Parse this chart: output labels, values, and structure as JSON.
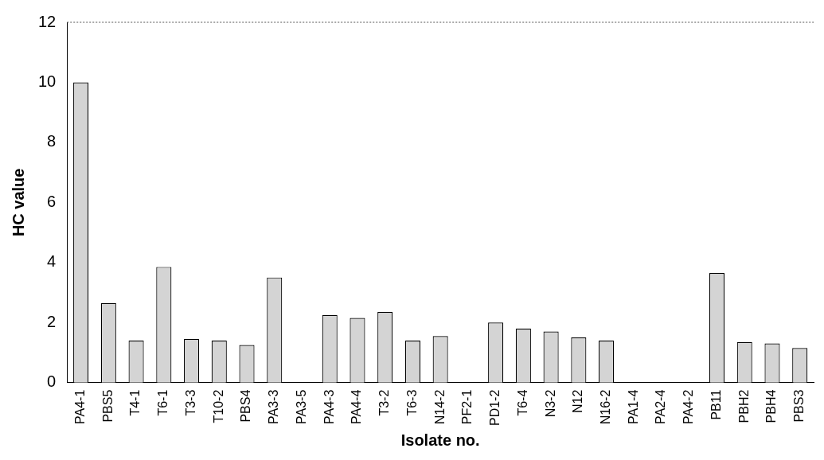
{
  "chart_data": {
    "type": "bar",
    "xlabel": "Isolate no.",
    "ylabel": "HC value",
    "categories": [
      "PA4-1",
      "PBS5",
      "T4-1",
      "T6-1",
      "T3-3",
      "T10-2",
      "PBS4",
      "PA3-3",
      "PA3-5",
      "PA4-3",
      "PA4-4",
      "T3-2",
      "T6-3",
      "N14-2",
      "PF2-1",
      "PD1-2",
      "T6-4",
      "N3-2",
      "N12",
      "N16-2",
      "PA1-4",
      "PA2-4",
      "PA4-2",
      "PB11",
      "PBH2",
      "PBH4",
      "PBS3"
    ],
    "values": [
      10,
      2.65,
      1.4,
      3.85,
      1.45,
      1.4,
      1.25,
      3.5,
      0,
      2.25,
      2.15,
      2.35,
      1.4,
      1.55,
      0,
      2.0,
      1.8,
      1.7,
      1.5,
      1.4,
      0,
      0,
      0,
      3.65,
      1.35,
      1.3,
      1.15
    ],
    "color": "#d4d4d4",
    "ylim": [
      0,
      12
    ],
    "yticks": [
      0,
      2,
      4,
      6,
      8,
      10,
      12
    ],
    "grid": false,
    "legend": false
  }
}
